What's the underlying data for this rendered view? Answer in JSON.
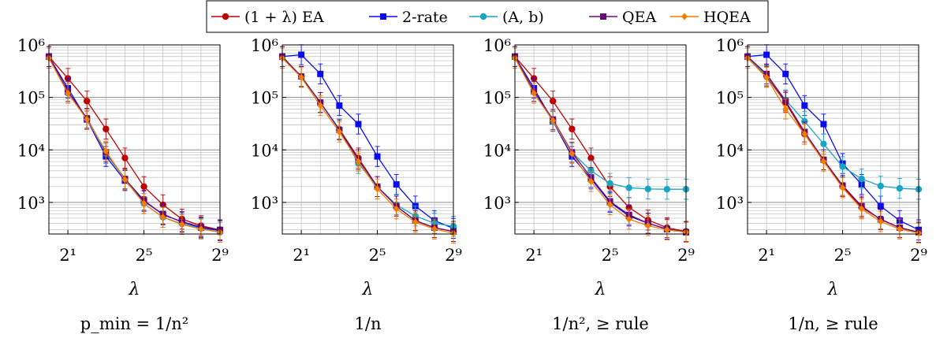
{
  "legend": {
    "entries": [
      {
        "label": "(1 + λ) EA",
        "color": "#c00000",
        "marker": "circle"
      },
      {
        "label": "2-rate",
        "color": "#0a0aef",
        "marker": "square"
      },
      {
        "label": "(A, b)",
        "color": "#1aa4c4",
        "marker": "circle"
      },
      {
        "label": "QEA",
        "color": "#6a0a7a",
        "marker": "square"
      },
      {
        "label": "HQEA",
        "color": "#f07d00",
        "marker": "diamond"
      }
    ]
  },
  "chart_data": [
    {
      "type": "line",
      "xlabel": "λ",
      "caption": "p_min = 1/n²",
      "x_scale": "log2",
      "y_scale": "log10",
      "xlim": [
        1,
        512
      ],
      "ylim": [
        250,
        1000000
      ],
      "x_ticks": [
        2,
        32,
        512
      ],
      "x_tick_labels": [
        "2¹",
        "2⁵",
        "2⁹"
      ],
      "y_ticks": [
        1000,
        10000,
        100000,
        1000000
      ],
      "y_tick_labels": [
        "10³",
        "10⁴",
        "10⁵",
        "10⁶"
      ],
      "grid": true,
      "x": [
        1,
        2,
        4,
        8,
        16,
        32,
        64,
        128,
        256,
        512
      ],
      "series": [
        {
          "name": "(1 + λ) EA",
          "values": [
            600000,
            230000,
            85000,
            25000,
            7000,
            2000,
            900,
            480,
            360,
            300
          ]
        },
        {
          "name": "2-rate",
          "values": [
            600000,
            150000,
            38000,
            7500,
            2600,
            1050,
            600,
            420,
            330,
            290
          ]
        },
        {
          "name": "(A, b)",
          "values": [
            600000,
            120000,
            40000,
            8500,
            2800,
            950,
            520,
            390,
            320,
            270
          ]
        },
        {
          "name": "QEA",
          "values": [
            600000,
            130000,
            40000,
            9000,
            2800,
            1100,
            580,
            430,
            340,
            300
          ]
        },
        {
          "name": "HQEA",
          "values": [
            560000,
            120000,
            38000,
            9500,
            2700,
            950,
            520,
            380,
            310,
            270
          ]
        }
      ]
    },
    {
      "type": "line",
      "xlabel": "λ",
      "caption": "1/n",
      "x_scale": "log2",
      "y_scale": "log10",
      "xlim": [
        1,
        512
      ],
      "ylim": [
        250,
        1000000
      ],
      "x_ticks": [
        2,
        32,
        512
      ],
      "x_tick_labels": [
        "2¹",
        "2⁵",
        "2⁹"
      ],
      "y_ticks": [
        1000,
        10000,
        100000,
        1000000
      ],
      "y_tick_labels": [
        "10³",
        "10⁴",
        "10⁵",
        "10⁶"
      ],
      "grid": true,
      "x": [
        1,
        2,
        4,
        8,
        16,
        32,
        64,
        128,
        256,
        512
      ],
      "series": [
        {
          "name": "(1 + λ) EA",
          "values": [
            600000,
            250000,
            80000,
            25000,
            7000,
            2000,
            850,
            450,
            330,
            280
          ]
        },
        {
          "name": "2-rate",
          "values": [
            600000,
            650000,
            280000,
            70000,
            31000,
            7500,
            2200,
            850,
            450,
            320
          ]
        },
        {
          "name": "(A, b)",
          "values": [
            600000,
            250000,
            80000,
            25000,
            5500,
            2000,
            900,
            550,
            400,
            350
          ]
        },
        {
          "name": "QEA",
          "values": [
            600000,
            250000,
            80000,
            24000,
            6500,
            2000,
            850,
            450,
            330,
            280
          ]
        },
        {
          "name": "HQEA",
          "values": [
            560000,
            240000,
            70000,
            22000,
            6000,
            1800,
            750,
            420,
            310,
            260
          ]
        }
      ]
    },
    {
      "type": "line",
      "xlabel": "λ",
      "caption": "1/n², ≥ rule",
      "x_scale": "log2",
      "y_scale": "log10",
      "xlim": [
        1,
        512
      ],
      "ylim": [
        250,
        1000000
      ],
      "x_ticks": [
        2,
        32,
        512
      ],
      "x_tick_labels": [
        "2¹",
        "2⁵",
        "2⁹"
      ],
      "y_ticks": [
        1000,
        10000,
        100000,
        1000000
      ],
      "y_tick_labels": [
        "10³",
        "10⁴",
        "10⁵",
        "10⁶"
      ],
      "grid": true,
      "x": [
        1,
        2,
        4,
        8,
        16,
        32,
        64,
        128,
        256,
        512
      ],
      "series": [
        {
          "name": "(1 + λ) EA",
          "values": [
            600000,
            230000,
            85000,
            25000,
            7000,
            2000,
            800,
            460,
            330,
            280
          ]
        },
        {
          "name": "2-rate",
          "values": [
            600000,
            150000,
            35000,
            7500,
            2800,
            1000,
            550,
            400,
            310,
            270
          ]
        },
        {
          "name": "(A, b)",
          "values": [
            600000,
            130000,
            35000,
            9000,
            4000,
            2300,
            1900,
            1800,
            1780,
            1780
          ]
        },
        {
          "name": "QEA",
          "values": [
            600000,
            130000,
            38000,
            9000,
            3000,
            1050,
            580,
            400,
            310,
            270
          ]
        },
        {
          "name": "HQEA",
          "values": [
            560000,
            120000,
            36000,
            8500,
            2500,
            900,
            480,
            360,
            300,
            270
          ]
        }
      ]
    },
    {
      "type": "line",
      "xlabel": "λ",
      "caption": "1/n, ≥ rule",
      "x_scale": "log2",
      "y_scale": "log10",
      "xlim": [
        1,
        512
      ],
      "ylim": [
        250,
        1000000
      ],
      "x_ticks": [
        2,
        32,
        512
      ],
      "x_tick_labels": [
        "2¹",
        "2⁵",
        "2⁹"
      ],
      "y_ticks": [
        1000,
        10000,
        100000,
        1000000
      ],
      "y_tick_labels": [
        "10³",
        "10⁴",
        "10⁵",
        "10⁶"
      ],
      "grid": true,
      "x": [
        1,
        2,
        4,
        8,
        16,
        32,
        64,
        128,
        256,
        512
      ],
      "series": [
        {
          "name": "(1 + λ) EA",
          "values": [
            600000,
            250000,
            80000,
            20000,
            6500,
            2000,
            800,
            480,
            330,
            270
          ]
        },
        {
          "name": "2-rate",
          "values": [
            600000,
            650000,
            280000,
            70000,
            31000,
            5500,
            2200,
            850,
            450,
            300
          ]
        },
        {
          "name": "(A, b)",
          "values": [
            600000,
            260000,
            90000,
            35000,
            13000,
            4800,
            2800,
            2050,
            1850,
            1780
          ]
        },
        {
          "name": "QEA",
          "values": [
            600000,
            280000,
            85000,
            22000,
            6500,
            2100,
            850,
            470,
            330,
            270
          ]
        },
        {
          "name": "HQEA",
          "values": [
            560000,
            240000,
            60000,
            20000,
            6000,
            1900,
            750,
            430,
            310,
            260
          ]
        }
      ]
    }
  ]
}
